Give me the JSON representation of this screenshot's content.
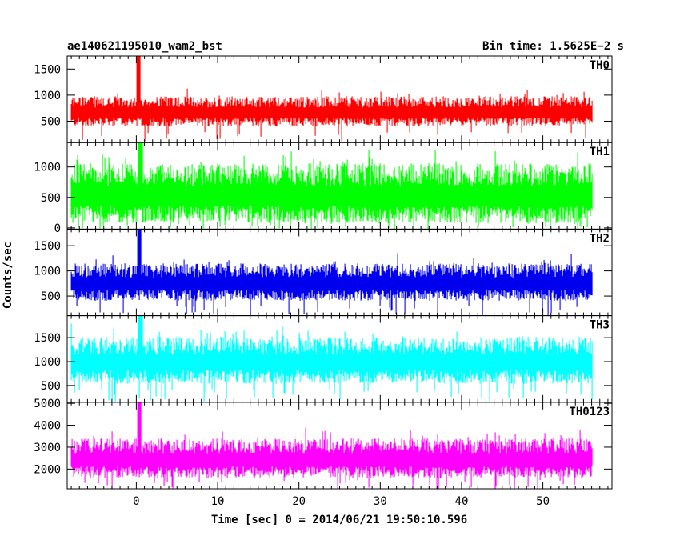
{
  "colors": {
    "background": "#ffffff",
    "axes": "#000000"
  },
  "chart_data": {
    "type": "line",
    "title_left": "ae140621195010_wam2_bst",
    "title_right": "Bin time: 1.5625E−2 s",
    "xlabel": "Time [sec] 0 = 2014/06/21 19:50:10.596",
    "ylabel": "Counts/sec",
    "xlim": [
      -8.5,
      58.5
    ],
    "x_ticks": [
      0,
      10,
      20,
      30,
      40,
      50
    ],
    "data_range_x": [
      -8,
      56
    ],
    "grid": false,
    "panels": [
      {
        "name": "TH0",
        "color": "#ff0000",
        "ylim": [
          90,
          1750
        ],
        "y_ticks": [
          500,
          1000,
          1500
        ],
        "level": 500,
        "spread": 480,
        "peak": 1750,
        "peak_at": 0.3
      },
      {
        "name": "TH1",
        "color": "#00ff00",
        "ylim": [
          -20,
          1400
        ],
        "y_ticks": [
          0,
          500,
          1000
        ],
        "level": 240,
        "spread": 820,
        "peak": 1400,
        "peak_at": 0.5
      },
      {
        "name": "TH2",
        "color": "#0000ee",
        "ylim": [
          110,
          1830
        ],
        "y_ticks": [
          500,
          1000,
          1500
        ],
        "level": 530,
        "spread": 620,
        "peak": 1830,
        "peak_at": 0.4
      },
      {
        "name": "TH3",
        "color": "#00ffff",
        "ylim": [
          150,
          1960
        ],
        "y_ticks": [
          500,
          1000,
          1500
        ],
        "level": 700,
        "spread": 820,
        "peak": 1960,
        "peak_at": 0.5
      },
      {
        "name": "TH0123",
        "color": "#ff00ff",
        "ylim": [
          1100,
          5050
        ],
        "y_ticks": [
          2000,
          3000,
          4000,
          5000
        ],
        "level": 1900,
        "spread": 1500,
        "peak": 5050,
        "peak_at": 0.4
      }
    ]
  }
}
